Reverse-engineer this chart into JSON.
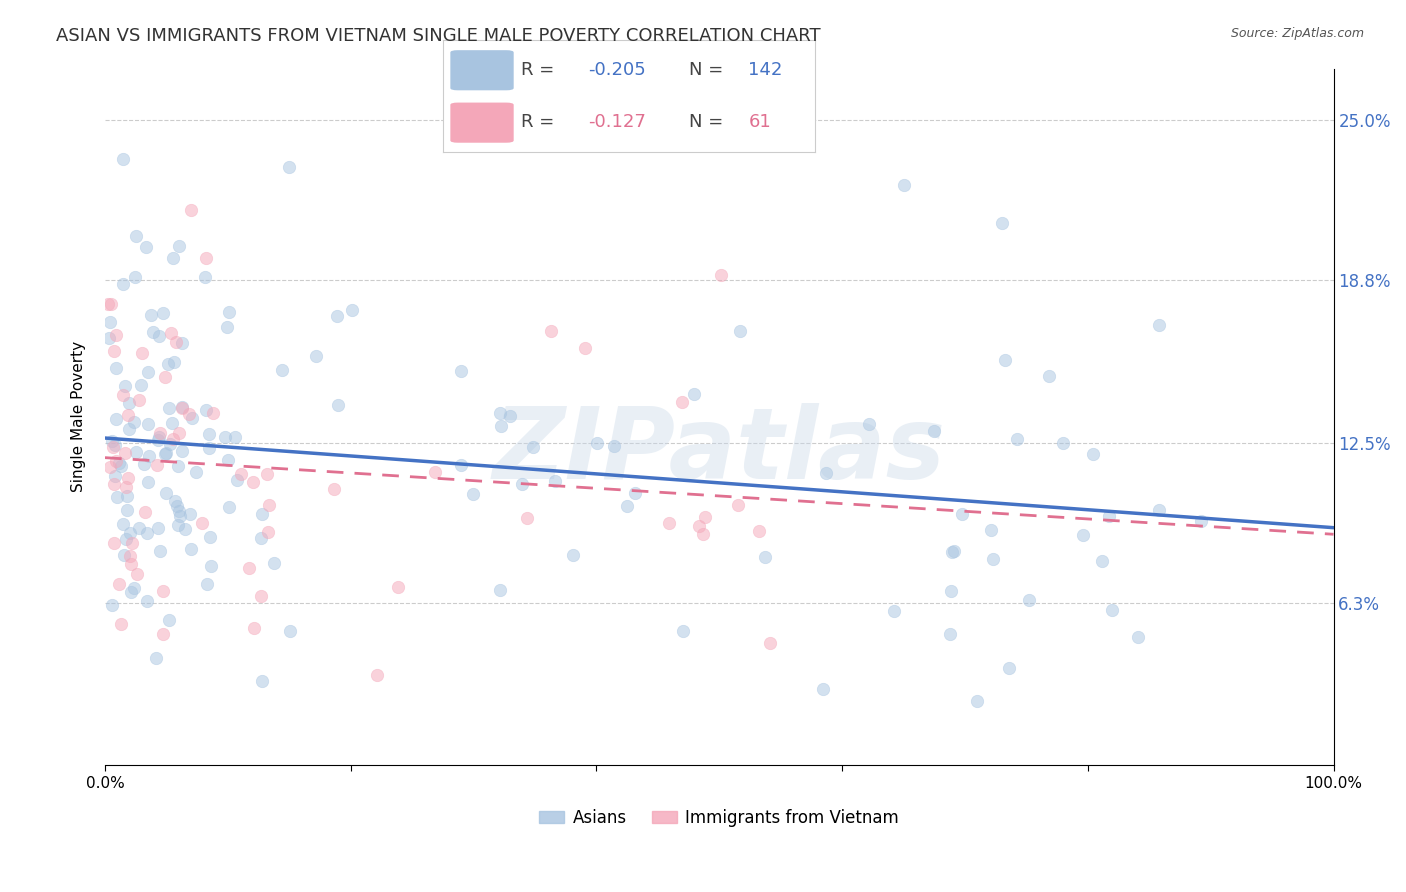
{
  "title": "ASIAN VS IMMIGRANTS FROM VIETNAM SINGLE MALE POVERTY CORRELATION CHART",
  "source": "Source: ZipAtlas.com",
  "ylabel": "Single Male Poverty",
  "ytick_values": [
    6.3,
    12.5,
    18.8,
    25.0
  ],
  "xlim": [
    0.0,
    100.0
  ],
  "ylim": [
    0.0,
    27.0
  ],
  "asian_color": "#a8c4e0",
  "vietnam_color": "#f4a7b9",
  "asian_line_color": "#4472c4",
  "vietnam_line_color": "#e07090",
  "background_color": "#ffffff",
  "watermark": "ZIPatlas",
  "watermark_color": "#c8d8e8",
  "asian_R": -0.205,
  "asian_N": 142,
  "vietnam_R": -0.127,
  "vietnam_N": 61,
  "title_fontsize": 13,
  "axis_label_fontsize": 11,
  "legend_fontsize": 12,
  "dot_size": 80,
  "dot_alpha": 0.5
}
